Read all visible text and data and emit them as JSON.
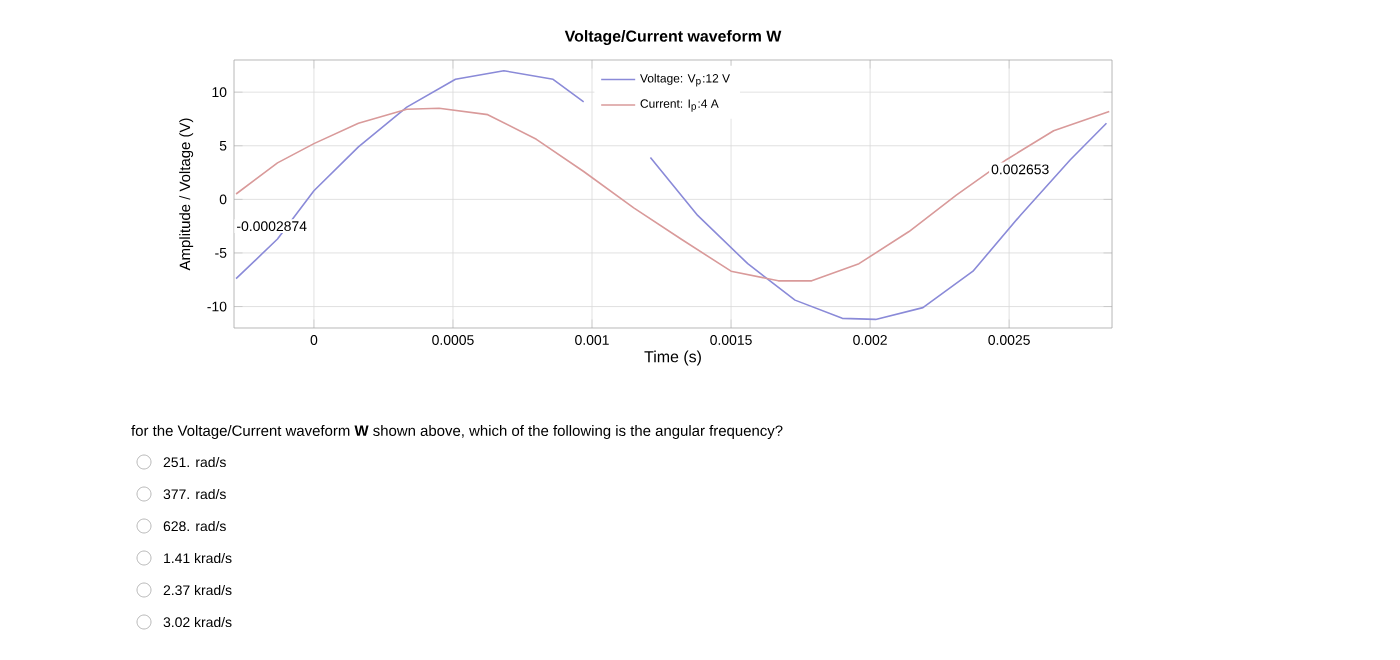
{
  "chart_data": {
    "type": "line",
    "title": "Voltage/Current waveform W",
    "xlabel": "Time (s)",
    "ylabel": "Amplitude / Voltage (V)",
    "xlim": [
      -0.0002874,
      0.00287
    ],
    "ylim": [
      -12,
      13
    ],
    "xticks": [
      0,
      0.0005,
      0.001,
      0.0015,
      0.002,
      0.0025
    ],
    "yticks": [
      -10,
      -5,
      0,
      5,
      10
    ],
    "grid": true,
    "legend": "top",
    "marker": "none",
    "line_style": "solid",
    "series": [
      {
        "name": "Voltage: V$_{p}$:12 V",
        "color": "#8a8ad8",
        "x": [
          -0.00028,
          -0.000131,
          0,
          0.00016,
          0.000334,
          0.000509,
          0.000683,
          0.00086,
          0.00097,
          0.00109,
          0.00121,
          0.00138,
          0.00156,
          0.00173,
          0.0019,
          0.00202,
          0.00219,
          0.00237,
          0.00254,
          0.00272,
          0.00285
        ],
        "values": [
          -7.4,
          -3.7,
          0.8,
          4.9,
          8.6,
          11.2,
          12,
          11.2,
          9.1,
          null,
          3.9,
          -1.5,
          -6,
          -9.4,
          -11.1,
          -11.2,
          -10.1,
          -6.7,
          -1.5,
          3.7,
          7.1
        ]
      },
      {
        "name": "Current: I$_{p}$:4 A",
        "color": "#d99a9a",
        "x": [
          -0.00028,
          -0.000131,
          0,
          0.00016,
          0.000334,
          0.00045,
          0.000625,
          0.0008,
          0.00097,
          0.00115,
          0.00132,
          0.0015,
          0.00167,
          0.00179,
          0.00196,
          0.00214,
          0.00231,
          0.00249,
          0.00266,
          0.00286
        ],
        "values": [
          0.5,
          3.4,
          5.2,
          7.1,
          8.4,
          8.5,
          7.9,
          5.6,
          2.6,
          -0.8,
          -3.7,
          -6.7,
          -7.6,
          -7.6,
          -6,
          -3,
          0.4,
          3.7,
          6.4,
          8.2
        ]
      }
    ],
    "annotations": [
      "-0.0002874",
      {
        "text": "0.002653",
        "x": 0.002653,
        "y": 2.8
      },
      "for the Voltage/Current waveform **W** shown above, which of the following is the angular frequency?",
      "251. rad/s",
      "377. rad/s",
      "628. rad/s",
      "1.41 krad/s",
      "2.37 krad/s",
      "3.02 krad/s"
    ]
  }
}
